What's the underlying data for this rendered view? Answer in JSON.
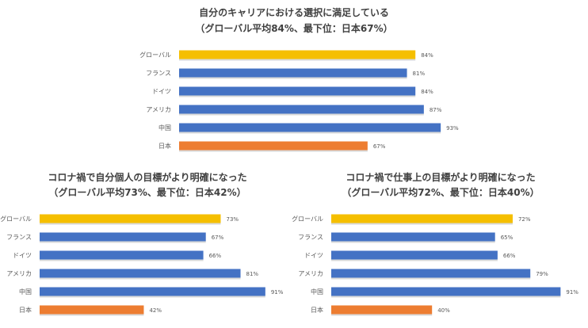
{
  "colors": {
    "global": "#F5BF00",
    "country": "#4472C4",
    "japan": "#ED7D31",
    "text": "#595959"
  },
  "chart_data": [
    {
      "type": "bar",
      "orientation": "horizontal",
      "title": "自分のキャリアにおける選択に満足している",
      "subtitle": "（グローバル平均84%、最下位：日本67%）",
      "categories": [
        "グローバル",
        "フランス",
        "ドイツ",
        "アメリカ",
        "中国",
        "日本"
      ],
      "values": [
        84,
        81,
        84,
        87,
        93,
        67
      ],
      "value_labels": [
        "84%",
        "81%",
        "84%",
        "87%",
        "93%",
        "67%"
      ],
      "bar_colors": [
        "global",
        "country",
        "country",
        "country",
        "country",
        "japan"
      ],
      "grid": false
    },
    {
      "type": "bar",
      "orientation": "horizontal",
      "title": "コロナ禍で自分個人の目標がより明確になった",
      "subtitle": "（グローバル平均73%、最下位：日本42%）",
      "categories": [
        "グローバル",
        "フランス",
        "ドイツ",
        "アメリカ",
        "中国",
        "日本"
      ],
      "values": [
        73,
        67,
        66,
        81,
        91,
        42
      ],
      "value_labels": [
        "73%",
        "67%",
        "66%",
        "81%",
        "91%",
        "42%"
      ],
      "bar_colors": [
        "global",
        "country",
        "country",
        "country",
        "country",
        "japan"
      ],
      "grid": false
    },
    {
      "type": "bar",
      "orientation": "horizontal",
      "title": "コロナ禍で仕事上の目標がより明確になった",
      "subtitle": "（グローバル平均72%、最下位：日本40%）",
      "categories": [
        "グローバル",
        "フランス",
        "ドイツ",
        "アメリカ",
        "中国",
        "日本"
      ],
      "values": [
        72,
        65,
        66,
        79,
        91,
        40
      ],
      "value_labels": [
        "72%",
        "65%",
        "66%",
        "79%",
        "91%",
        "40%"
      ],
      "bar_colors": [
        "global",
        "country",
        "country",
        "country",
        "country",
        "japan"
      ],
      "grid": false
    }
  ]
}
